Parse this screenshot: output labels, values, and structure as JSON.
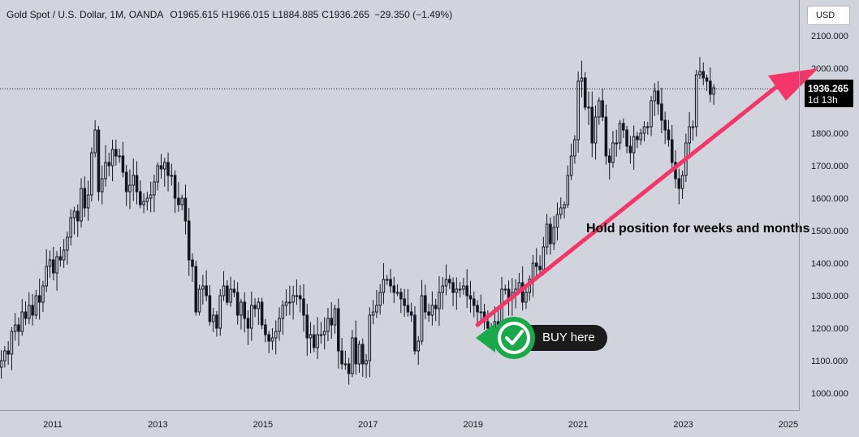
{
  "legend": {
    "symbol": "Gold Spot / U.S. Dollar, 1M, OANDA",
    "open_label": "O",
    "open": "1965.615",
    "high_label": "H",
    "high": "1966.015",
    "low_label": "L",
    "low": "1884.885",
    "close_label": "C",
    "close": "1936.265",
    "change": "−29.350 (−1.49%)"
  },
  "currency_button": {
    "label": "USD"
  },
  "price_marker": {
    "price": "1936.265",
    "countdown": "1d 13h"
  },
  "annotations": {
    "hold_text": "Hold position for weeks and months",
    "buy_label": "BUY here",
    "buy_icon": "check-icon"
  },
  "colors": {
    "background": "#d1d4dc",
    "candle": "#131722",
    "arrow": "#f23669",
    "buy_badge": "#1a1a1a",
    "check_green": "#1ba84a",
    "price_label_bg": "#000000"
  },
  "chart_data": {
    "type": "candlestick",
    "title": "Gold Spot / U.S. Dollar, 1M, OANDA",
    "xlabel": "",
    "ylabel": "",
    "y_ticks": [
      "2100.000",
      "2000.000",
      "1900.000",
      "1800.000",
      "1700.000",
      "1600.000",
      "1500.000",
      "1400.000",
      "1300.000",
      "1200.000",
      "1100.000",
      "1000.000"
    ],
    "x_ticks": [
      "2011",
      "2013",
      "2015",
      "2017",
      "2019",
      "2021",
      "2023",
      "2025"
    ],
    "ylim": [
      955,
      2115
    ],
    "xlim": [
      2010.0,
      2025.1
    ],
    "grid": false,
    "last_price": 1936.265,
    "closes": [
      1100,
      1130,
      1120,
      1190,
      1210,
      1190,
      1250,
      1230,
      1270,
      1240,
      1300,
      1280,
      1330,
      1390,
      1410,
      1370,
      1420,
      1410,
      1440,
      1480,
      1540,
      1560,
      1530,
      1630,
      1570,
      1610,
      1740,
      1810,
      1620,
      1660,
      1710,
      1700,
      1750,
      1730,
      1730,
      1680,
      1620,
      1640,
      1670,
      1620,
      1580,
      1590,
      1600,
      1610,
      1650,
      1700,
      1690,
      1710,
      1670,
      1670,
      1600,
      1580,
      1600,
      1530,
      1410,
      1390,
      1250,
      1320,
      1330,
      1300,
      1220,
      1240,
      1200,
      1300,
      1330,
      1280,
      1320,
      1310,
      1240,
      1280,
      1230,
      1200,
      1270,
      1260,
      1280,
      1210,
      1180,
      1160,
      1170,
      1190,
      1230,
      1270,
      1280,
      1280,
      1300,
      1300,
      1290,
      1240,
      1170,
      1180,
      1140,
      1180,
      1180,
      1190,
      1230,
      1210,
      1260,
      1130,
      1090,
      1090,
      1060,
      1170,
      1090,
      1150,
      1090,
      1100,
      1240,
      1250,
      1270,
      1310,
      1350,
      1350,
      1330,
      1310,
      1310,
      1290,
      1270,
      1250,
      1240,
      1130,
      1160,
      1300,
      1250,
      1240,
      1270,
      1260,
      1310,
      1330,
      1350,
      1340,
      1310,
      1320,
      1320,
      1330,
      1300,
      1290,
      1270,
      1250,
      1250,
      1220,
      1200,
      1190,
      1220,
      1210,
      1320,
      1320,
      1290,
      1310,
      1320,
      1340,
      1280,
      1310,
      1350,
      1400,
      1390,
      1380,
      1450,
      1520,
      1460,
      1510,
      1550,
      1570,
      1580,
      1670,
      1730,
      1780,
      1960,
      1970,
      1880,
      1880,
      1770,
      1850,
      1900,
      1850,
      1730,
      1710,
      1770,
      1770,
      1830,
      1810,
      1760,
      1740,
      1790,
      1780,
      1800,
      1820,
      1820,
      1900,
      1930,
      1890,
      1840,
      1810,
      1780,
      1710,
      1660,
      1630,
      1670,
      1770,
      1820,
      1820,
      1980,
      1990,
      1970,
      1960,
      1920,
      1940
    ]
  }
}
